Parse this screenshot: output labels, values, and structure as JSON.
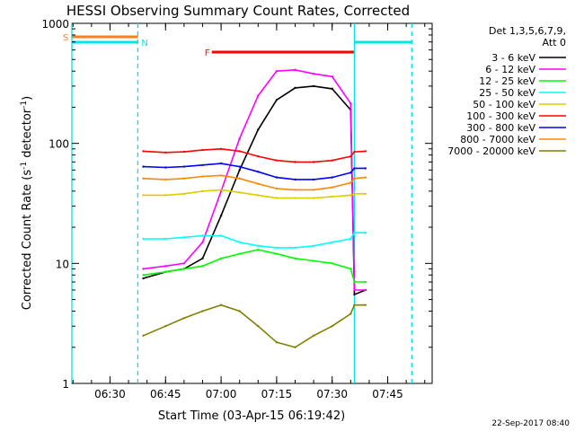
{
  "chart_data": {
    "type": "line",
    "title": "HESSI Observing Summary Count Rates, Corrected",
    "xlabel": "Start Time (03-Apr-15 06:19:42)",
    "ylabel_main": "Corrected Count Rate (s",
    "ylabel_sup1": "-1",
    "ylabel_mid": " detector",
    "ylabel_sup2": "-1",
    "ylabel_end": ")",
    "yscale": "log",
    "ylim": [
      1,
      1000
    ],
    "xlim_minutes": [
      "06:19:42",
      "07:57:00"
    ],
    "x_ticks": [
      "06:30",
      "06:45",
      "07:00",
      "07:15",
      "07:30",
      "07:45"
    ],
    "y_ticks": [
      "1",
      "10",
      "100",
      "1000"
    ],
    "legend_header_1": "Det 1,3,5,6,7,9,",
    "legend_header_2": "Att 0",
    "timestamp": "22-Sep-2017 08:40",
    "flags": [
      {
        "label": "S",
        "start": "06:19:42",
        "end": "06:37:30",
        "color": "#ff7f1f",
        "row": "S"
      },
      {
        "label": "N",
        "start": "06:19:42",
        "end": "06:37:30",
        "color": "#00e5e5",
        "row": "N"
      },
      {
        "label": "F",
        "start": "06:57:30",
        "end": "07:36:00",
        "color": "#ff0000",
        "row": "F"
      },
      {
        "label": "",
        "start": "07:36:00",
        "end": "07:51:30",
        "color": "#00e5e5",
        "row": "N"
      }
    ],
    "markers": [
      {
        "time": "06:19:42",
        "color": "#00e5e5",
        "style": "solid"
      },
      {
        "time": "06:37:30",
        "color": "#00e5e5",
        "style": "dashed"
      },
      {
        "time": "07:36:00",
        "color": "#00e5e5",
        "style": "solid"
      },
      {
        "time": "07:51:30",
        "color": "#00e5e5",
        "style": "dashed"
      }
    ],
    "x_times": [
      "06:39",
      "06:45",
      "06:50",
      "06:55",
      "07:00",
      "07:05",
      "07:10",
      "07:15",
      "07:20",
      "07:25",
      "07:30",
      "07:35",
      "07:36",
      "07:39"
    ],
    "series": [
      {
        "name": "3 - 6 keV",
        "color": "#000000",
        "values": [
          7.5,
          8.5,
          9,
          11,
          25,
          60,
          130,
          230,
          290,
          300,
          285,
          190,
          5.5,
          6
        ]
      },
      {
        "name": "6 - 12 keV",
        "color": "#ff00ff",
        "values": [
          9,
          9.5,
          10,
          15,
          40,
          110,
          250,
          400,
          410,
          380,
          360,
          215,
          6,
          6
        ]
      },
      {
        "name": "12 - 25 keV",
        "color": "#00ff00",
        "values": [
          8,
          8.5,
          9,
          9.5,
          11,
          12,
          13,
          12,
          11,
          10.5,
          10,
          9,
          7,
          7
        ]
      },
      {
        "name": "25 - 50 keV",
        "color": "#00ffff",
        "values": [
          16,
          16,
          16.5,
          17,
          17,
          15,
          14,
          13.5,
          13.5,
          14,
          15,
          16,
          18,
          18
        ]
      },
      {
        "name": "50 - 100 keV",
        "color": "#ddcc00",
        "values": [
          37,
          37,
          38,
          40,
          41,
          39,
          37,
          35,
          35,
          35,
          36,
          37,
          38,
          38
        ]
      },
      {
        "name": "100 - 300 keV",
        "color": "#ff0000",
        "values": [
          86,
          84,
          85,
          88,
          90,
          86,
          78,
          72,
          70,
          70,
          72,
          78,
          85,
          86
        ]
      },
      {
        "name": "300 - 800 keV",
        "color": "#0000ff",
        "values": [
          64,
          63,
          64,
          66,
          68,
          64,
          58,
          52,
          50,
          50,
          52,
          57,
          62,
          62
        ]
      },
      {
        "name": "800 - 7000 keV",
        "color": "#ff8800",
        "values": [
          51,
          50,
          51,
          53,
          54,
          51,
          46,
          42,
          41,
          41,
          43,
          47,
          51,
          52
        ]
      },
      {
        "name": "7000 - 20000 keV",
        "color": "#808000",
        "values": [
          2.5,
          3,
          3.5,
          4,
          4.5,
          4,
          3,
          2.2,
          2,
          2.5,
          3,
          3.8,
          4.5,
          4.5
        ]
      }
    ]
  }
}
